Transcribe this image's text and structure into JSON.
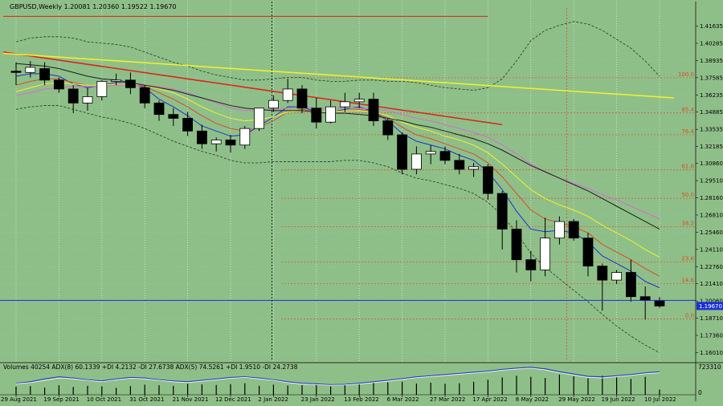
{
  "header": {
    "symbol_line": "GBPUSD,Weekly  1.20081 1.20360 1.19522 1.19670"
  },
  "indicator": {
    "label": "Volumes 40254  ADX(8) 60.1339 +DI 4.2132 -DI 27.6738  ADX(5) 74.5261 +DI 1.9510 -DI 24.2738",
    "scale_max": "723310",
    "scale_min": "0"
  },
  "colors": {
    "background": "#8fbf88",
    "bull_candle": "#ffffff",
    "bear_candle": "#000000",
    "trend_red": "#e0201a",
    "trend_yellow": "#f4f22a",
    "price_line": "#1a2fd8",
    "fib_lines": "#d94b2b",
    "current_price_box": "#1a2fd8"
  },
  "chart_data": {
    "type": "candlestick",
    "timeframe": "Weekly",
    "symbol": "GBPUSD",
    "y_ticks": [
      "1.41635",
      "1.40285",
      "1.38935",
      "1.37585",
      "1.36235",
      "1.34885",
      "1.33535",
      "1.32185",
      "1.30860",
      "1.29510",
      "1.28160",
      "1.26810",
      "1.25460",
      "1.24110",
      "1.22760",
      "1.21410",
      "1.20060",
      "1.18710",
      "1.17360",
      "1.16010"
    ],
    "current_price": "1.19670",
    "x_ticks": [
      "29 Aug 2021",
      "19 Sep 2021",
      "10 Oct 2021",
      "31 Oct 2021",
      "21 Nov 2021",
      "12 Dec 2021",
      "2 Jan 2022",
      "23 Jan 2022",
      "13 Feb 2022",
      "6 Mar 2022",
      "27 Mar 2022",
      "17 Apr 2022",
      "8 May 2022",
      "29 May 2022",
      "19 Jun 2022",
      "10 Jul 2022"
    ],
    "fib_levels": [
      {
        "label": "100.0",
        "price": 1.3758
      },
      {
        "label": "85.4",
        "price": 1.3482
      },
      {
        "label": "76.4",
        "price": 1.3311
      },
      {
        "label": "61.8",
        "price": 1.3035
      },
      {
        "label": "50.0",
        "price": 1.2812
      },
      {
        "label": "38.2",
        "price": 1.2589
      },
      {
        "label": "23.6",
        "price": 1.2312
      },
      {
        "label": "14.6",
        "price": 1.2142
      },
      {
        "label": "0.0",
        "price": 1.1866
      }
    ],
    "horizontal_line": 1.2011,
    "candles": [
      {
        "o": 1.381,
        "h": 1.388,
        "l": 1.37,
        "c": 1.38
      },
      {
        "o": 1.38,
        "h": 1.389,
        "l": 1.376,
        "c": 1.384
      },
      {
        "o": 1.383,
        "h": 1.388,
        "l": 1.37,
        "c": 1.374
      },
      {
        "o": 1.374,
        "h": 1.376,
        "l": 1.364,
        "c": 1.367
      },
      {
        "o": 1.367,
        "h": 1.37,
        "l": 1.348,
        "c": 1.356
      },
      {
        "o": 1.356,
        "h": 1.368,
        "l": 1.35,
        "c": 1.361
      },
      {
        "o": 1.361,
        "h": 1.374,
        "l": 1.358,
        "c": 1.373
      },
      {
        "o": 1.373,
        "h": 1.379,
        "l": 1.37,
        "c": 1.374
      },
      {
        "o": 1.374,
        "h": 1.38,
        "l": 1.363,
        "c": 1.368
      },
      {
        "o": 1.368,
        "h": 1.37,
        "l": 1.352,
        "c": 1.356
      },
      {
        "o": 1.356,
        "h": 1.358,
        "l": 1.342,
        "c": 1.347
      },
      {
        "o": 1.347,
        "h": 1.352,
        "l": 1.338,
        "c": 1.344
      },
      {
        "o": 1.344,
        "h": 1.349,
        "l": 1.33,
        "c": 1.334
      },
      {
        "o": 1.334,
        "h": 1.339,
        "l": 1.32,
        "c": 1.324
      },
      {
        "o": 1.324,
        "h": 1.329,
        "l": 1.318,
        "c": 1.327
      },
      {
        "o": 1.327,
        "h": 1.331,
        "l": 1.317,
        "c": 1.323
      },
      {
        "o": 1.323,
        "h": 1.338,
        "l": 1.32,
        "c": 1.336
      },
      {
        "o": 1.336,
        "h": 1.352,
        "l": 1.334,
        "c": 1.352
      },
      {
        "o": 1.352,
        "h": 1.362,
        "l": 1.349,
        "c": 1.358
      },
      {
        "o": 1.358,
        "h": 1.375,
        "l": 1.356,
        "c": 1.367
      },
      {
        "o": 1.367,
        "h": 1.37,
        "l": 1.348,
        "c": 1.352
      },
      {
        "o": 1.352,
        "h": 1.36,
        "l": 1.336,
        "c": 1.341
      },
      {
        "o": 1.341,
        "h": 1.358,
        "l": 1.34,
        "c": 1.353
      },
      {
        "o": 1.353,
        "h": 1.364,
        "l": 1.349,
        "c": 1.357
      },
      {
        "o": 1.357,
        "h": 1.364,
        "l": 1.352,
        "c": 1.359
      },
      {
        "o": 1.359,
        "h": 1.364,
        "l": 1.338,
        "c": 1.342
      },
      {
        "o": 1.342,
        "h": 1.344,
        "l": 1.327,
        "c": 1.331
      },
      {
        "o": 1.331,
        "h": 1.333,
        "l": 1.3,
        "c": 1.304
      },
      {
        "o": 1.304,
        "h": 1.322,
        "l": 1.3,
        "c": 1.316
      },
      {
        "o": 1.316,
        "h": 1.323,
        "l": 1.308,
        "c": 1.318
      },
      {
        "o": 1.318,
        "h": 1.322,
        "l": 1.308,
        "c": 1.311
      },
      {
        "o": 1.311,
        "h": 1.316,
        "l": 1.3,
        "c": 1.304
      },
      {
        "o": 1.304,
        "h": 1.309,
        "l": 1.298,
        "c": 1.306
      },
      {
        "o": 1.306,
        "h": 1.308,
        "l": 1.28,
        "c": 1.285
      },
      {
        "o": 1.285,
        "h": 1.287,
        "l": 1.241,
        "c": 1.257
      },
      {
        "o": 1.257,
        "h": 1.264,
        "l": 1.223,
        "c": 1.233
      },
      {
        "o": 1.233,
        "h": 1.24,
        "l": 1.216,
        "c": 1.225
      },
      {
        "o": 1.225,
        "h": 1.266,
        "l": 1.22,
        "c": 1.25
      },
      {
        "o": 1.25,
        "h": 1.267,
        "l": 1.245,
        "c": 1.263
      },
      {
        "o": 1.263,
        "h": 1.265,
        "l": 1.248,
        "c": 1.25
      },
      {
        "o": 1.25,
        "h": 1.254,
        "l": 1.22,
        "c": 1.228
      },
      {
        "o": 1.228,
        "h": 1.23,
        "l": 1.193,
        "c": 1.217
      },
      {
        "o": 1.217,
        "h": 1.225,
        "l": 1.214,
        "c": 1.223
      },
      {
        "o": 1.223,
        "h": 1.233,
        "l": 1.2,
        "c": 1.204
      },
      {
        "o": 1.204,
        "h": 1.212,
        "l": 1.186,
        "c": 1.201
      },
      {
        "o": 1.201,
        "h": 1.2036,
        "l": 1.1952,
        "c": 1.1967
      }
    ],
    "moving_averages": [
      {
        "color": "#1a2fd8",
        "values": [
          1.377,
          1.379,
          1.379,
          1.377,
          1.371,
          1.368,
          1.37,
          1.372,
          1.372,
          1.368,
          1.359,
          1.353,
          1.346,
          1.338,
          1.334,
          1.33,
          1.331,
          1.338,
          1.345,
          1.353,
          1.353,
          1.349,
          1.349,
          1.351,
          1.353,
          1.349,
          1.342,
          1.332,
          1.326,
          1.323,
          1.32,
          1.315,
          1.311,
          1.302,
          1.288,
          1.271,
          1.257,
          1.255,
          1.256,
          1.254,
          1.247,
          1.236,
          1.23,
          1.224,
          1.216,
          1.211
        ]
      },
      {
        "color": "#d94b2b",
        "values": [
          1.37,
          1.373,
          1.375,
          1.375,
          1.372,
          1.37,
          1.37,
          1.371,
          1.371,
          1.369,
          1.364,
          1.359,
          1.353,
          1.346,
          1.34,
          1.336,
          1.334,
          1.337,
          1.342,
          1.349,
          1.351,
          1.349,
          1.349,
          1.35,
          1.351,
          1.349,
          1.344,
          1.337,
          1.331,
          1.328,
          1.324,
          1.32,
          1.316,
          1.309,
          1.298,
          1.285,
          1.272,
          1.265,
          1.262,
          1.259,
          1.254,
          1.245,
          1.239,
          1.233,
          1.226,
          1.22
        ]
      },
      {
        "color": "#f4f22a",
        "values": [
          1.365,
          1.368,
          1.371,
          1.372,
          1.371,
          1.37,
          1.37,
          1.371,
          1.371,
          1.37,
          1.367,
          1.364,
          1.359,
          1.353,
          1.348,
          1.344,
          1.342,
          1.343,
          1.345,
          1.349,
          1.35,
          1.349,
          1.349,
          1.35,
          1.35,
          1.349,
          1.346,
          1.341,
          1.337,
          1.334,
          1.33,
          1.327,
          1.323,
          1.317,
          1.308,
          1.298,
          1.288,
          1.281,
          1.276,
          1.272,
          1.267,
          1.26,
          1.254,
          1.248,
          1.241,
          1.235
        ]
      },
      {
        "color": "#d96ad0",
        "values": [
          1.362,
          1.364,
          1.367,
          1.368,
          1.369,
          1.369,
          1.369,
          1.37,
          1.37,
          1.37,
          1.369,
          1.367,
          1.364,
          1.36,
          1.356,
          1.352,
          1.35,
          1.35,
          1.351,
          1.352,
          1.353,
          1.352,
          1.352,
          1.352,
          1.352,
          1.351,
          1.35,
          1.347,
          1.344,
          1.342,
          1.339,
          1.336,
          1.333,
          1.329,
          1.323,
          1.316,
          1.308,
          1.302,
          1.297,
          1.293,
          1.289,
          1.284,
          1.28,
          1.275,
          1.27,
          1.265
        ]
      },
      {
        "color": "#1c1c1c",
        "values": [
          1.387,
          1.386,
          1.385,
          1.383,
          1.38,
          1.377,
          1.375,
          1.374,
          1.372,
          1.37,
          1.368,
          1.366,
          1.363,
          1.36,
          1.357,
          1.354,
          1.352,
          1.351,
          1.35,
          1.35,
          1.35,
          1.349,
          1.348,
          1.348,
          1.347,
          1.346,
          1.344,
          1.342,
          1.339,
          1.337,
          1.334,
          1.331,
          1.328,
          1.324,
          1.319,
          1.313,
          1.307,
          1.302,
          1.297,
          1.292,
          1.287,
          1.281,
          1.275,
          1.269,
          1.263,
          1.257
        ]
      }
    ],
    "bollinger": {
      "upper": [
        1.404,
        1.407,
        1.408,
        1.408,
        1.407,
        1.404,
        1.403,
        1.402,
        1.4,
        1.396,
        1.392,
        1.388,
        1.385,
        1.381,
        1.378,
        1.376,
        1.374,
        1.374,
        1.375,
        1.376,
        1.376,
        1.374,
        1.373,
        1.373,
        1.374,
        1.374,
        1.373,
        1.373,
        1.372,
        1.37,
        1.368,
        1.367,
        1.366,
        1.368,
        1.375,
        1.389,
        1.405,
        1.413,
        1.417,
        1.42,
        1.418,
        1.413,
        1.406,
        1.399,
        1.389,
        1.377
      ],
      "lower": [
        1.351,
        1.353,
        1.354,
        1.354,
        1.351,
        1.348,
        1.345,
        1.343,
        1.34,
        1.336,
        1.331,
        1.326,
        1.322,
        1.318,
        1.315,
        1.311,
        1.309,
        1.309,
        1.31,
        1.31,
        1.31,
        1.31,
        1.31,
        1.311,
        1.311,
        1.309,
        1.306,
        1.301,
        1.297,
        1.295,
        1.292,
        1.289,
        1.285,
        1.278,
        1.268,
        1.254,
        1.238,
        1.227,
        1.218,
        1.209,
        1.2,
        1.19,
        1.181,
        1.173,
        1.166,
        1.16
      ]
    },
    "trendlines": [
      {
        "color": "#e0201a",
        "from_index": 0,
        "from_price": 1.396,
        "to_index": 34,
        "to_price": 1.339
      },
      {
        "color": "#f4f22a",
        "from_index": 0,
        "from_price": 1.395,
        "to_index": 46,
        "to_price": 1.36
      },
      {
        "color": "#e0201a",
        "from_index": 0,
        "from_price": 1.424,
        "to_index": 33,
        "to_price": 1.424
      }
    ],
    "volumes": [
      0.28,
      0.3,
      0.25,
      0.33,
      0.27,
      0.31,
      0.29,
      0.24,
      0.3,
      0.35,
      0.33,
      0.31,
      0.38,
      0.36,
      0.34,
      0.37,
      0.4,
      0.31,
      0.35,
      0.32,
      0.33,
      0.34,
      0.29,
      0.33,
      0.38,
      0.41,
      0.43,
      0.45,
      0.39,
      0.42,
      0.38,
      0.4,
      0.45,
      0.52,
      0.6,
      0.66,
      0.62,
      0.58,
      0.7,
      0.64,
      0.57,
      0.66,
      0.6,
      0.55,
      0.62,
      0.18
    ],
    "adx_main": [
      0.4,
      0.45,
      0.55,
      0.62,
      0.58,
      0.52,
      0.48,
      0.55,
      0.6,
      0.58,
      0.52,
      0.48,
      0.45,
      0.5,
      0.55,
      0.6,
      0.62,
      0.58,
      0.52,
      0.45,
      0.4,
      0.38,
      0.35,
      0.36,
      0.4,
      0.45,
      0.5,
      0.56,
      0.62,
      0.66,
      0.7,
      0.74,
      0.78,
      0.82,
      0.88,
      0.92,
      0.95,
      0.9,
      0.8,
      0.72,
      0.64,
      0.62,
      0.66,
      0.7,
      0.76,
      0.8
    ],
    "adx_second": [
      0.38,
      0.42,
      0.5,
      0.58,
      0.55,
      0.5,
      0.45,
      0.52,
      0.57,
      0.55,
      0.5,
      0.45,
      0.42,
      0.47,
      0.52,
      0.57,
      0.6,
      0.55,
      0.5,
      0.42,
      0.37,
      0.35,
      0.33,
      0.34,
      0.37,
      0.42,
      0.47,
      0.53,
      0.59,
      0.63,
      0.67,
      0.71,
      0.75,
      0.79,
      0.85,
      0.89,
      0.92,
      0.86,
      0.76,
      0.68,
      0.6,
      0.58,
      0.63,
      0.67,
      0.73,
      0.76
    ]
  }
}
